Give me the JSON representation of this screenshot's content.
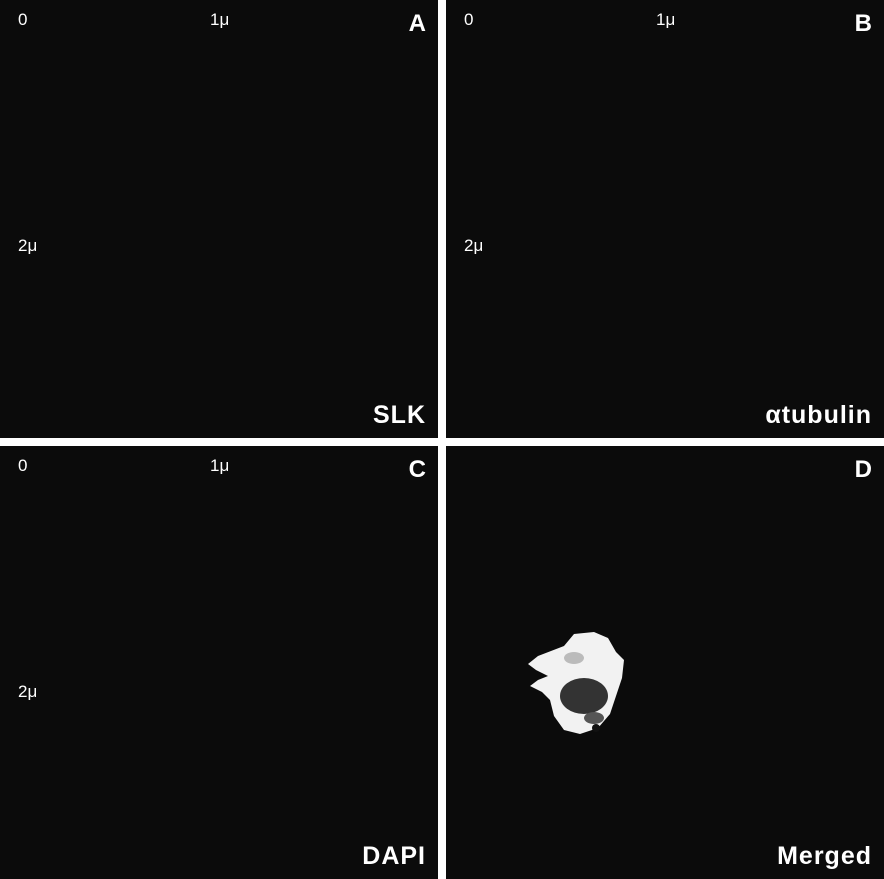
{
  "panels": [
    {
      "letter": "A",
      "label": "SLK",
      "scale": [
        "0",
        "1μ",
        "2μ"
      ]
    },
    {
      "letter": "B",
      "label": "αtubulin",
      "scale": [
        "0",
        "1μ",
        "2μ"
      ]
    },
    {
      "letter": "C",
      "label": "DAPI",
      "scale": [
        "0",
        "1μ",
        "2μ"
      ]
    },
    {
      "letter": "D",
      "label": "Merged",
      "scale": []
    }
  ]
}
